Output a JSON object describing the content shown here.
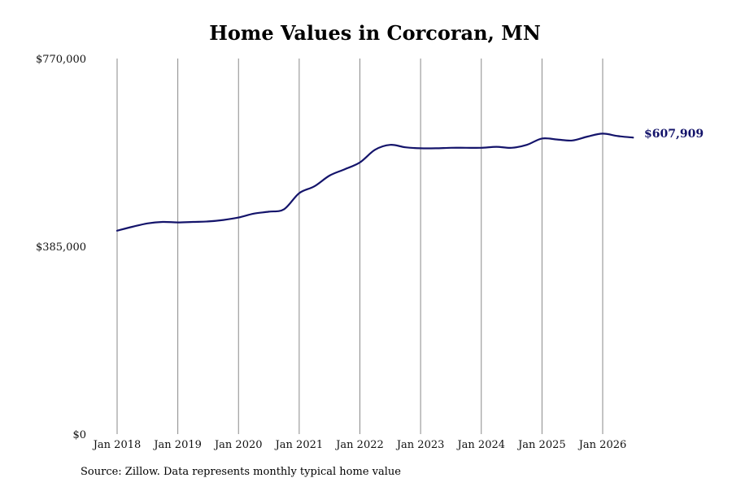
{
  "chart_data": {
    "type": "line",
    "title": "Home Values in Corcoran, MN",
    "xlabel": "",
    "ylabel": "",
    "ylim": [
      0,
      770000
    ],
    "y_ticks": [
      {
        "value": 0,
        "label": "$0"
      },
      {
        "value": 385000,
        "label": "$385,000"
      },
      {
        "value": 770000,
        "label": "$770,000"
      }
    ],
    "x_ticks": [
      {
        "date": "2018-01",
        "label": "Jan 2018"
      },
      {
        "date": "2019-01",
        "label": "Jan 2019"
      },
      {
        "date": "2020-01",
        "label": "Jan 2020"
      },
      {
        "date": "2021-01",
        "label": "Jan 2021"
      },
      {
        "date": "2022-01",
        "label": "Jan 2022"
      },
      {
        "date": "2023-01",
        "label": "Jan 2023"
      },
      {
        "date": "2024-01",
        "label": "Jan 2024"
      },
      {
        "date": "2025-01",
        "label": "Jan 2025"
      },
      {
        "date": "2026-01",
        "label": "Jan 2026"
      }
    ],
    "grid": "vertical",
    "line_color": "#14146b",
    "end_label": "$607,909",
    "series": [
      {
        "points": [
          [
            "2018-01",
            417000
          ],
          [
            "2018-04",
            425000
          ],
          [
            "2018-07",
            432000
          ],
          [
            "2018-10",
            435000
          ],
          [
            "2019-01",
            434000
          ],
          [
            "2019-04",
            435000
          ],
          [
            "2019-07",
            436000
          ],
          [
            "2019-10",
            439000
          ],
          [
            "2020-01",
            444000
          ],
          [
            "2020-04",
            452000
          ],
          [
            "2020-07",
            456000
          ],
          [
            "2020-10",
            461000
          ],
          [
            "2021-01",
            494000
          ],
          [
            "2021-04",
            508000
          ],
          [
            "2021-07",
            530000
          ],
          [
            "2021-10",
            543000
          ],
          [
            "2022-01",
            557000
          ],
          [
            "2022-04",
            583000
          ],
          [
            "2022-07",
            593000
          ],
          [
            "2022-10",
            588000
          ],
          [
            "2023-01",
            586000
          ],
          [
            "2023-04",
            586000
          ],
          [
            "2023-07",
            587000
          ],
          [
            "2023-10",
            587000
          ],
          [
            "2024-01",
            587000
          ],
          [
            "2024-04",
            589000
          ],
          [
            "2024-07",
            587000
          ],
          [
            "2024-10",
            593000
          ],
          [
            "2025-01",
            606000
          ],
          [
            "2025-04",
            604000
          ],
          [
            "2025-07",
            602000
          ],
          [
            "2025-10",
            610000
          ],
          [
            "2026-01",
            616000
          ],
          [
            "2026-04",
            611000
          ],
          [
            "2026-07",
            607909
          ]
        ]
      }
    ]
  },
  "source_note": "Source: Zillow. Data represents monthly typical home value"
}
